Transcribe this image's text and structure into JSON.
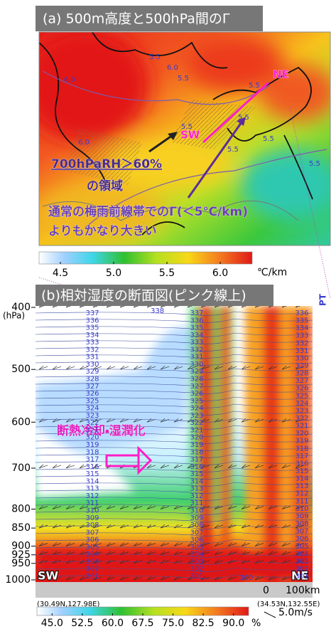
{
  "panel_a": {
    "title": "(a) 500m高度と500hPa間のΓ",
    "contour_labels": [
      "6.0",
      "5.5",
      "5.5",
      "6.0",
      "5.5",
      "5.5",
      "5.5",
      "5.5",
      "5.5",
      "5.5",
      "6.0"
    ],
    "point_labels": {
      "start": "SW",
      "end": "NE"
    },
    "annotation_rh": "700hPaRH＞60%",
    "annotation_rh_2": "の領域",
    "annotation_gamma": "通常の梅雨前線帯でのΓ(＜5℃/km)",
    "annotation_gamma_2": "よりもかなり大きい",
    "colorbar": {
      "lim": [
        4.3,
        6.3
      ],
      "ticks": [
        4.5,
        {
          "value": 5,
          "label": "5.0"
        },
        5.5,
        {
          "value": 6,
          "label": "6.0"
        }
      ],
      "unit": "℃/km"
    }
  },
  "panel_b": {
    "title": "(b)相対湿度の断面図(ピンク線上)",
    "y_unit": "(hPa)",
    "ylim": [
      400,
      1000
    ],
    "yticks": [
      400,
      500,
      600,
      700,
      800,
      850,
      900,
      925,
      950,
      1000
    ],
    "contour_columns": [
      [
        337,
        336,
        335,
        334,
        333,
        332,
        331,
        330,
        329,
        328,
        327,
        326,
        325,
        324,
        323,
        322,
        321,
        320,
        319,
        318,
        317,
        316,
        315,
        314,
        313,
        312,
        311,
        310,
        309,
        308,
        307,
        306,
        305,
        304,
        303,
        302,
        301
      ],
      [
        337,
        336,
        335,
        334,
        333,
        332,
        331,
        330,
        329,
        328,
        327,
        326,
        325,
        324,
        323,
        322,
        321,
        320,
        319,
        318,
        317,
        316,
        315,
        314,
        313,
        312,
        311,
        310,
        309,
        308,
        307,
        306,
        305,
        304,
        303,
        302,
        301
      ],
      [
        336,
        335,
        334,
        333,
        332,
        331,
        330,
        329,
        328,
        327,
        326,
        325,
        324,
        323,
        322,
        321,
        320,
        319,
        318,
        317,
        316,
        315,
        314,
        313,
        312,
        311,
        310,
        309,
        308,
        307,
        306,
        305,
        304,
        303,
        302,
        301
      ]
    ],
    "extra_labels": [
      "338",
      "300"
    ],
    "annotation": "断熱冷却・湿潤化",
    "side_label": "PT",
    "end_labels": {
      "start": "SW",
      "end": "NE"
    },
    "start_coord": "(30.49N,127.98E)",
    "end_coord": "(34.53N,132.55E)",
    "scale_zero": "0",
    "scale_length": "100km",
    "wind_scale": "5.0m/s",
    "colorbar": {
      "lim": [
        41.25,
        93.75
      ],
      "ticks": [
        {
          "value": 45,
          "label": "45.0"
        },
        52.5,
        {
          "value": 60,
          "label": "60.0"
        },
        67.5,
        {
          "value": 75,
          "label": "75.0"
        },
        82.5,
        {
          "value": 90,
          "label": "90.0"
        }
      ],
      "unit": "%"
    }
  }
}
